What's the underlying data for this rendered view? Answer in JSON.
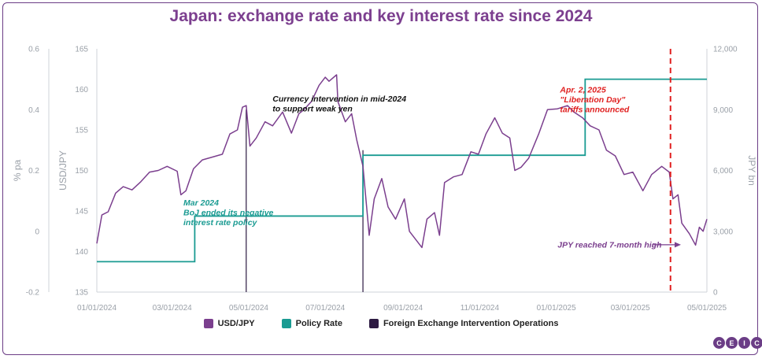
{
  "chart_data": {
    "type": "line",
    "title": "Japan: exchange rate and key interest rate since 2024",
    "x_axis": {
      "range": [
        "2024-01-01",
        "2025-05-01"
      ],
      "ticks": [
        "01/01/2024",
        "03/01/2024",
        "05/01/2024",
        "07/01/2024",
        "09/01/2024",
        "11/01/2024",
        "01/01/2025",
        "03/01/2025",
        "05/01/2025"
      ]
    },
    "left_axis": {
      "label": "% pa",
      "range": [
        -0.2,
        0.6
      ],
      "ticks": [
        "0.6",
        "0.4",
        "0.2",
        "0",
        "-0.2"
      ]
    },
    "middle_axis": {
      "label": "USD/JPY",
      "range": [
        135,
        165
      ],
      "ticks": [
        "165",
        "160",
        "155",
        "150",
        "145",
        "140",
        "135"
      ]
    },
    "right_axis": {
      "label": "JPY bn",
      "range": [
        0,
        12000
      ],
      "ticks": [
        "12,000",
        "9,000",
        "6,000",
        "3,000",
        "0"
      ]
    },
    "grid": false,
    "legend_position": "bottom",
    "series": [
      {
        "name": "USD/JPY",
        "axis": "middle",
        "color": "#7b3f8e",
        "points": [
          [
            "2024-01-01",
            141.0
          ],
          [
            "2024-01-05",
            144.5
          ],
          [
            "2024-01-10",
            144.9
          ],
          [
            "2024-01-16",
            147.2
          ],
          [
            "2024-01-22",
            148.0
          ],
          [
            "2024-01-29",
            147.6
          ],
          [
            "2024-02-05",
            148.6
          ],
          [
            "2024-02-12",
            149.8
          ],
          [
            "2024-02-19",
            150.0
          ],
          [
            "2024-02-26",
            150.5
          ],
          [
            "2024-03-05",
            149.9
          ],
          [
            "2024-03-08",
            147.0
          ],
          [
            "2024-03-12",
            147.5
          ],
          [
            "2024-03-18",
            150.2
          ],
          [
            "2024-03-25",
            151.3
          ],
          [
            "2024-04-01",
            151.6
          ],
          [
            "2024-04-10",
            152.0
          ],
          [
            "2024-04-16",
            154.5
          ],
          [
            "2024-04-22",
            155.0
          ],
          [
            "2024-04-26",
            157.8
          ],
          [
            "2024-04-29",
            158.0
          ],
          [
            "2024-05-02",
            153.0
          ],
          [
            "2024-05-07",
            154.0
          ],
          [
            "2024-05-14",
            156.0
          ],
          [
            "2024-05-20",
            155.5
          ],
          [
            "2024-05-28",
            157.2
          ],
          [
            "2024-06-04",
            154.6
          ],
          [
            "2024-06-10",
            157.0
          ],
          [
            "2024-06-14",
            157.5
          ],
          [
            "2024-06-20",
            158.5
          ],
          [
            "2024-06-26",
            160.5
          ],
          [
            "2024-07-01",
            161.5
          ],
          [
            "2024-07-04",
            161.0
          ],
          [
            "2024-07-10",
            161.8
          ],
          [
            "2024-07-11",
            158.5
          ],
          [
            "2024-07-17",
            156.0
          ],
          [
            "2024-07-22",
            157.0
          ],
          [
            "2024-07-26",
            153.8
          ],
          [
            "2024-07-31",
            150.5
          ],
          [
            "2024-08-05",
            142.0
          ],
          [
            "2024-08-09",
            146.5
          ],
          [
            "2024-08-15",
            149.0
          ],
          [
            "2024-08-20",
            145.5
          ],
          [
            "2024-08-26",
            144.0
          ],
          [
            "2024-09-02",
            146.5
          ],
          [
            "2024-09-06",
            142.5
          ],
          [
            "2024-09-11",
            141.5
          ],
          [
            "2024-09-16",
            140.5
          ],
          [
            "2024-09-20",
            144.0
          ],
          [
            "2024-09-26",
            144.8
          ],
          [
            "2024-09-30",
            142.0
          ],
          [
            "2024-10-04",
            148.5
          ],
          [
            "2024-10-11",
            149.2
          ],
          [
            "2024-10-18",
            149.5
          ],
          [
            "2024-10-25",
            152.3
          ],
          [
            "2024-10-31",
            152.0
          ],
          [
            "2024-11-06",
            154.5
          ],
          [
            "2024-11-13",
            156.5
          ],
          [
            "2024-11-19",
            154.6
          ],
          [
            "2024-11-25",
            154.0
          ],
          [
            "2024-11-29",
            150.0
          ],
          [
            "2024-12-04",
            150.4
          ],
          [
            "2024-12-10",
            151.5
          ],
          [
            "2024-12-18",
            154.5
          ],
          [
            "2024-12-25",
            157.5
          ],
          [
            "2025-01-02",
            157.6
          ],
          [
            "2025-01-10",
            158.0
          ],
          [
            "2025-01-15",
            157.2
          ],
          [
            "2025-01-22",
            156.5
          ],
          [
            "2025-01-28",
            155.5
          ],
          [
            "2025-02-04",
            155.0
          ],
          [
            "2025-02-10",
            152.5
          ],
          [
            "2025-02-17",
            151.8
          ],
          [
            "2025-02-24",
            149.5
          ],
          [
            "2025-03-03",
            149.8
          ],
          [
            "2025-03-11",
            147.5
          ],
          [
            "2025-03-18",
            149.5
          ],
          [
            "2025-03-26",
            150.5
          ],
          [
            "2025-04-01",
            149.8
          ],
          [
            "2025-04-04",
            146.5
          ],
          [
            "2025-04-08",
            147.0
          ],
          [
            "2025-04-11",
            143.5
          ],
          [
            "2025-04-17",
            142.2
          ],
          [
            "2025-04-22",
            140.8
          ],
          [
            "2025-04-25",
            143.0
          ],
          [
            "2025-04-28",
            142.5
          ],
          [
            "2025-05-01",
            144.0
          ]
        ]
      },
      {
        "name": "Policy Rate",
        "axis": "left",
        "color": "#1a9b92",
        "steps": [
          [
            "2024-01-01",
            -0.1
          ],
          [
            "2024-03-19",
            0.05
          ],
          [
            "2024-07-31",
            0.25
          ],
          [
            "2025-01-24",
            0.5
          ],
          [
            "2025-05-01",
            0.5
          ]
        ]
      },
      {
        "name": "Foreign Exchange Intervention Operations",
        "axis": "right",
        "color": "#2d1a42",
        "bars": [
          [
            "2024-04-29",
            9000
          ],
          [
            "2024-07-31",
            7000
          ]
        ]
      }
    ],
    "annotations": [
      {
        "date": "2024-05-20",
        "value": 158.5,
        "lines": [
          "Currency intervention in mid-2024",
          "to support weak yen"
        ],
        "color": "#111111"
      },
      {
        "date": "2024-03-10",
        "value": 145.7,
        "lines": [
          "Mar 2024",
          "BoJ ended its negative",
          "interest rate policy"
        ],
        "color": "#1a9b92"
      },
      {
        "date": "2025-01-04",
        "value": 159.6,
        "lines": [
          "Apr. 2, 2025",
          "\"Liberation Day\"",
          "tariffs announced"
        ],
        "color": "#e02020"
      },
      {
        "date": "2025-01-02",
        "value": 140.5,
        "lines": [
          "JPY reached 7-month high"
        ],
        "color": "#7b3f8e"
      }
    ],
    "event_line": {
      "date": "2025-04-02",
      "color": "#e02020"
    }
  }
}
